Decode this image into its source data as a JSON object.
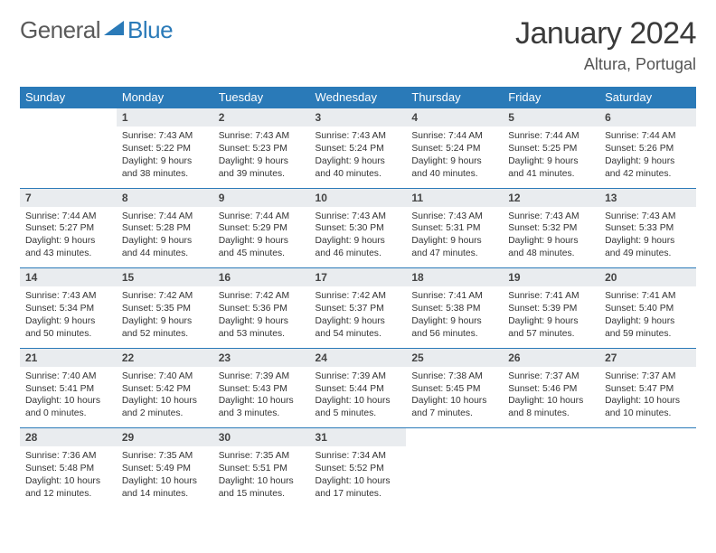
{
  "brand": {
    "part1": "General",
    "part2": "Blue"
  },
  "title": "January 2024",
  "subtitle": "Altura, Portugal",
  "colors": {
    "header_bg": "#2a7ab8",
    "header_fg": "#ffffff",
    "daynum_bg": "#e9ecef",
    "border": "#2a7ab8",
    "text": "#333333",
    "background": "#ffffff"
  },
  "weekdays": [
    "Sunday",
    "Monday",
    "Tuesday",
    "Wednesday",
    "Thursday",
    "Friday",
    "Saturday"
  ],
  "weeks": [
    [
      null,
      {
        "n": "1",
        "sr": "Sunrise: 7:43 AM",
        "ss": "Sunset: 5:22 PM",
        "dl1": "Daylight: 9 hours",
        "dl2": "and 38 minutes."
      },
      {
        "n": "2",
        "sr": "Sunrise: 7:43 AM",
        "ss": "Sunset: 5:23 PM",
        "dl1": "Daylight: 9 hours",
        "dl2": "and 39 minutes."
      },
      {
        "n": "3",
        "sr": "Sunrise: 7:43 AM",
        "ss": "Sunset: 5:24 PM",
        "dl1": "Daylight: 9 hours",
        "dl2": "and 40 minutes."
      },
      {
        "n": "4",
        "sr": "Sunrise: 7:44 AM",
        "ss": "Sunset: 5:24 PM",
        "dl1": "Daylight: 9 hours",
        "dl2": "and 40 minutes."
      },
      {
        "n": "5",
        "sr": "Sunrise: 7:44 AM",
        "ss": "Sunset: 5:25 PM",
        "dl1": "Daylight: 9 hours",
        "dl2": "and 41 minutes."
      },
      {
        "n": "6",
        "sr": "Sunrise: 7:44 AM",
        "ss": "Sunset: 5:26 PM",
        "dl1": "Daylight: 9 hours",
        "dl2": "and 42 minutes."
      }
    ],
    [
      {
        "n": "7",
        "sr": "Sunrise: 7:44 AM",
        "ss": "Sunset: 5:27 PM",
        "dl1": "Daylight: 9 hours",
        "dl2": "and 43 minutes."
      },
      {
        "n": "8",
        "sr": "Sunrise: 7:44 AM",
        "ss": "Sunset: 5:28 PM",
        "dl1": "Daylight: 9 hours",
        "dl2": "and 44 minutes."
      },
      {
        "n": "9",
        "sr": "Sunrise: 7:44 AM",
        "ss": "Sunset: 5:29 PM",
        "dl1": "Daylight: 9 hours",
        "dl2": "and 45 minutes."
      },
      {
        "n": "10",
        "sr": "Sunrise: 7:43 AM",
        "ss": "Sunset: 5:30 PM",
        "dl1": "Daylight: 9 hours",
        "dl2": "and 46 minutes."
      },
      {
        "n": "11",
        "sr": "Sunrise: 7:43 AM",
        "ss": "Sunset: 5:31 PM",
        "dl1": "Daylight: 9 hours",
        "dl2": "and 47 minutes."
      },
      {
        "n": "12",
        "sr": "Sunrise: 7:43 AM",
        "ss": "Sunset: 5:32 PM",
        "dl1": "Daylight: 9 hours",
        "dl2": "and 48 minutes."
      },
      {
        "n": "13",
        "sr": "Sunrise: 7:43 AM",
        "ss": "Sunset: 5:33 PM",
        "dl1": "Daylight: 9 hours",
        "dl2": "and 49 minutes."
      }
    ],
    [
      {
        "n": "14",
        "sr": "Sunrise: 7:43 AM",
        "ss": "Sunset: 5:34 PM",
        "dl1": "Daylight: 9 hours",
        "dl2": "and 50 minutes."
      },
      {
        "n": "15",
        "sr": "Sunrise: 7:42 AM",
        "ss": "Sunset: 5:35 PM",
        "dl1": "Daylight: 9 hours",
        "dl2": "and 52 minutes."
      },
      {
        "n": "16",
        "sr": "Sunrise: 7:42 AM",
        "ss": "Sunset: 5:36 PM",
        "dl1": "Daylight: 9 hours",
        "dl2": "and 53 minutes."
      },
      {
        "n": "17",
        "sr": "Sunrise: 7:42 AM",
        "ss": "Sunset: 5:37 PM",
        "dl1": "Daylight: 9 hours",
        "dl2": "and 54 minutes."
      },
      {
        "n": "18",
        "sr": "Sunrise: 7:41 AM",
        "ss": "Sunset: 5:38 PM",
        "dl1": "Daylight: 9 hours",
        "dl2": "and 56 minutes."
      },
      {
        "n": "19",
        "sr": "Sunrise: 7:41 AM",
        "ss": "Sunset: 5:39 PM",
        "dl1": "Daylight: 9 hours",
        "dl2": "and 57 minutes."
      },
      {
        "n": "20",
        "sr": "Sunrise: 7:41 AM",
        "ss": "Sunset: 5:40 PM",
        "dl1": "Daylight: 9 hours",
        "dl2": "and 59 minutes."
      }
    ],
    [
      {
        "n": "21",
        "sr": "Sunrise: 7:40 AM",
        "ss": "Sunset: 5:41 PM",
        "dl1": "Daylight: 10 hours",
        "dl2": "and 0 minutes."
      },
      {
        "n": "22",
        "sr": "Sunrise: 7:40 AM",
        "ss": "Sunset: 5:42 PM",
        "dl1": "Daylight: 10 hours",
        "dl2": "and 2 minutes."
      },
      {
        "n": "23",
        "sr": "Sunrise: 7:39 AM",
        "ss": "Sunset: 5:43 PM",
        "dl1": "Daylight: 10 hours",
        "dl2": "and 3 minutes."
      },
      {
        "n": "24",
        "sr": "Sunrise: 7:39 AM",
        "ss": "Sunset: 5:44 PM",
        "dl1": "Daylight: 10 hours",
        "dl2": "and 5 minutes."
      },
      {
        "n": "25",
        "sr": "Sunrise: 7:38 AM",
        "ss": "Sunset: 5:45 PM",
        "dl1": "Daylight: 10 hours",
        "dl2": "and 7 minutes."
      },
      {
        "n": "26",
        "sr": "Sunrise: 7:37 AM",
        "ss": "Sunset: 5:46 PM",
        "dl1": "Daylight: 10 hours",
        "dl2": "and 8 minutes."
      },
      {
        "n": "27",
        "sr": "Sunrise: 7:37 AM",
        "ss": "Sunset: 5:47 PM",
        "dl1": "Daylight: 10 hours",
        "dl2": "and 10 minutes."
      }
    ],
    [
      {
        "n": "28",
        "sr": "Sunrise: 7:36 AM",
        "ss": "Sunset: 5:48 PM",
        "dl1": "Daylight: 10 hours",
        "dl2": "and 12 minutes."
      },
      {
        "n": "29",
        "sr": "Sunrise: 7:35 AM",
        "ss": "Sunset: 5:49 PM",
        "dl1": "Daylight: 10 hours",
        "dl2": "and 14 minutes."
      },
      {
        "n": "30",
        "sr": "Sunrise: 7:35 AM",
        "ss": "Sunset: 5:51 PM",
        "dl1": "Daylight: 10 hours",
        "dl2": "and 15 minutes."
      },
      {
        "n": "31",
        "sr": "Sunrise: 7:34 AM",
        "ss": "Sunset: 5:52 PM",
        "dl1": "Daylight: 10 hours",
        "dl2": "and 17 minutes."
      },
      null,
      null,
      null
    ]
  ]
}
